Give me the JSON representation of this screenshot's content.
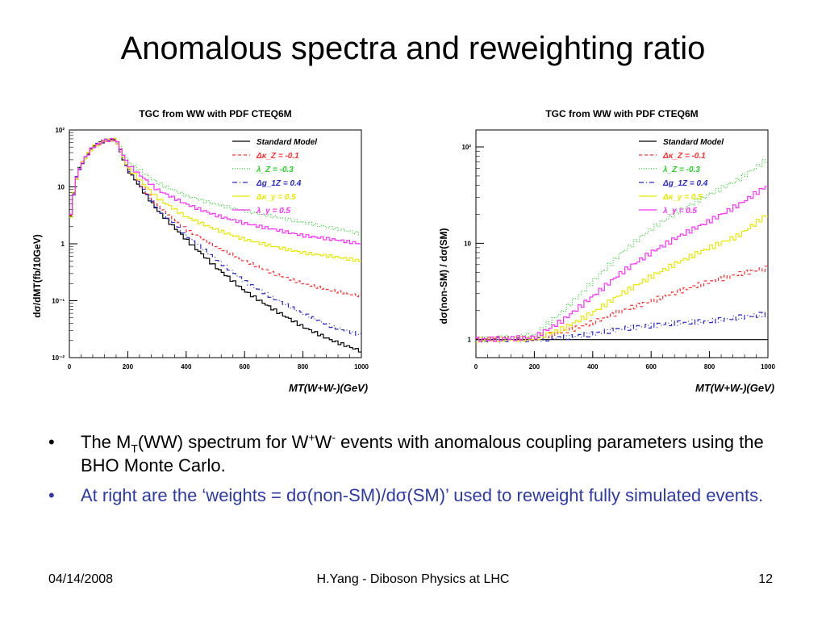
{
  "slide": {
    "title": "Anomalous spectra and reweighting ratio",
    "bullets": [
      {
        "parts": [
          "The M",
          "T",
          "(WW) spectrum for W",
          "+",
          "W",
          "-",
          " events with anomalous coupling parameters using the BHO Monte Carlo."
        ]
      },
      {
        "text": "At right are the ‘weights = dσ(non-SM)/dσ(SM)’ used to reweight fully simulated events."
      }
    ],
    "bullet_symbol": "•",
    "footer": {
      "date": "04/14/2008",
      "center": "H.Yang - Diboson Physics at LHC",
      "page": "12"
    }
  },
  "chart_data": [
    {
      "type": "line",
      "title": "TGC from WW with PDF CTEQ6M",
      "ylabel": "dσ/dMT(fb/10GeV)",
      "xlabel": "MT(W+W-)(GeV)",
      "xlim": [
        0,
        1000
      ],
      "ylim": [
        0.01,
        100
      ],
      "yscale": "log",
      "x_ticks": [
        "0",
        "200",
        "400",
        "600",
        "800",
        "1000"
      ],
      "y_ticks": [
        "10²",
        "10",
        "1",
        "10⁻¹",
        "10⁻²"
      ],
      "legend_position": "top-right",
      "series": [
        {
          "name": "Standard Model",
          "color": "#000000",
          "dash": "none",
          "x": [
            0,
            20,
            40,
            80,
            120,
            160,
            200,
            300,
            400,
            500,
            600,
            700,
            800,
            900,
            1000
          ],
          "values": [
            2,
            12,
            25,
            50,
            65,
            68,
            20,
            4,
            1.2,
            0.4,
            0.15,
            0.07,
            0.035,
            0.02,
            0.013
          ]
        },
        {
          "name": "Δκ_Z = -0.1",
          "color": "#ff3030",
          "dash": "4,3",
          "x": [
            0,
            20,
            40,
            80,
            120,
            160,
            200,
            300,
            400,
            500,
            600,
            700,
            800,
            900,
            1000
          ],
          "values": [
            2,
            12,
            25,
            50,
            65,
            68,
            21,
            4.8,
            1.8,
            0.9,
            0.5,
            0.3,
            0.2,
            0.15,
            0.12
          ]
        },
        {
          "name": "λ_Z = -0.3",
          "color": "#22d022",
          "dash": "1,2",
          "x": [
            0,
            20,
            40,
            80,
            120,
            160,
            200,
            300,
            400,
            500,
            600,
            700,
            800,
            900,
            1000
          ],
          "values": [
            2,
            12,
            25,
            50,
            65,
            68,
            28,
            12,
            7,
            5,
            3.8,
            3,
            2.4,
            1.9,
            1.5
          ]
        },
        {
          "name": "Δg_1Z = 0.4",
          "color": "#2a2ad0",
          "dash": "6,3,1,3",
          "x": [
            0,
            20,
            40,
            80,
            120,
            160,
            200,
            300,
            400,
            500,
            600,
            700,
            800,
            900,
            1000
          ],
          "values": [
            2,
            12,
            25,
            50,
            65,
            68,
            20.5,
            4.3,
            1.4,
            0.55,
            0.22,
            0.11,
            0.06,
            0.035,
            0.025
          ]
        },
        {
          "name": "Δκ_γ = 0.5",
          "color": "#e8e800",
          "dash": "none",
          "x": [
            0,
            20,
            40,
            80,
            120,
            160,
            200,
            300,
            400,
            500,
            600,
            700,
            800,
            900,
            1000
          ],
          "values": [
            2,
            12,
            25,
            50,
            65,
            68,
            22,
            6.5,
            3,
            1.8,
            1.2,
            0.9,
            0.7,
            0.6,
            0.5
          ]
        },
        {
          "name": "λ_γ = 0.5",
          "color": "#ff30ff",
          "dash": "none",
          "x": [
            0,
            20,
            40,
            80,
            120,
            160,
            200,
            300,
            400,
            500,
            600,
            700,
            800,
            900,
            1000
          ],
          "values": [
            2,
            12,
            25,
            50,
            65,
            68,
            25,
            9,
            5,
            3.2,
            2.3,
            1.8,
            1.4,
            1.2,
            1.0
          ]
        }
      ]
    },
    {
      "type": "line",
      "title": "TGC from WW with PDF CTEQ6M",
      "ylabel": "dσ(non-SM) / dσ(SM)",
      "xlabel": "MT(W+W-)(GeV)",
      "xlim": [
        0,
        1000
      ],
      "ylim": [
        0.65,
        150
      ],
      "yscale": "log",
      "x_ticks": [
        "0",
        "200",
        "400",
        "600",
        "800",
        "1000"
      ],
      "y_ticks": [
        "10²",
        "10",
        "1"
      ],
      "legend_position": "top-right",
      "series": [
        {
          "name": "Standard Model",
          "color": "#000000",
          "dash": "none",
          "x": [
            0,
            1000
          ],
          "values": [
            1,
            1
          ]
        },
        {
          "name": "Δκ_Z = -0.1",
          "color": "#ff3030",
          "dash": "4,3",
          "x": [
            0,
            200,
            300,
            400,
            500,
            600,
            700,
            800,
            900,
            1000
          ],
          "values": [
            1,
            1.03,
            1.2,
            1.5,
            2.0,
            2.5,
            3.2,
            4.0,
            4.8,
            5.5
          ]
        },
        {
          "name": "λ_Z = -0.3",
          "color": "#22d022",
          "dash": "1,2",
          "x": [
            0,
            200,
            300,
            400,
            500,
            600,
            700,
            800,
            900,
            1000
          ],
          "values": [
            1,
            1.1,
            2,
            4,
            8,
            14,
            22,
            32,
            46,
            75
          ]
        },
        {
          "name": "Δg_1Z = 0.4",
          "color": "#2a2ad0",
          "dash": "6,3,1,3",
          "x": [
            0,
            200,
            300,
            400,
            500,
            600,
            700,
            800,
            900,
            1000
          ],
          "values": [
            1,
            1.0,
            1.05,
            1.15,
            1.3,
            1.4,
            1.5,
            1.55,
            1.7,
            1.85
          ]
        },
        {
          "name": "Δκ_γ = 0.5",
          "color": "#e8e800",
          "dash": "none",
          "x": [
            0,
            200,
            300,
            400,
            500,
            600,
            700,
            800,
            900,
            1000
          ],
          "values": [
            1,
            1.02,
            1.3,
            1.9,
            3.0,
            4.5,
            6.5,
            9,
            12,
            20
          ]
        },
        {
          "name": "λ_γ = 0.5",
          "color": "#ff30ff",
          "dash": "none",
          "x": [
            0,
            200,
            300,
            400,
            500,
            600,
            700,
            800,
            900,
            1000
          ],
          "values": [
            1,
            1.05,
            1.6,
            2.8,
            5,
            8,
            12,
            17,
            25,
            40
          ]
        }
      ]
    }
  ]
}
